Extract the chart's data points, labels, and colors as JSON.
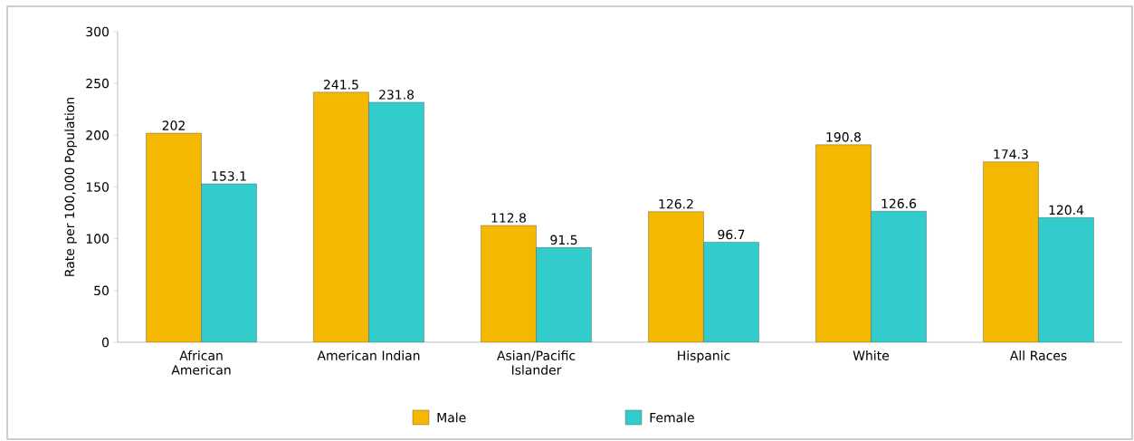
{
  "chart_data": {
    "type": "bar",
    "ylabel": "Rate per 100,000 Population",
    "categories": [
      "African American",
      "American Indian",
      "Asian/Pacific Islander",
      "Hispanic",
      "White",
      "All Races"
    ],
    "series": [
      {
        "name": "Male",
        "color": "#f5b800",
        "values": [
          202,
          241.5,
          112.8,
          126.2,
          190.8,
          174.3
        ]
      },
      {
        "name": "Female",
        "color": "#33cccc",
        "values": [
          153.1,
          231.8,
          91.5,
          96.7,
          126.6,
          120.4
        ]
      }
    ],
    "ylim": [
      0,
      300
    ],
    "yticks": [
      0,
      50,
      100,
      150,
      200,
      250,
      300
    ],
    "grid": false,
    "legend": "bottom",
    "data_labels": true
  }
}
